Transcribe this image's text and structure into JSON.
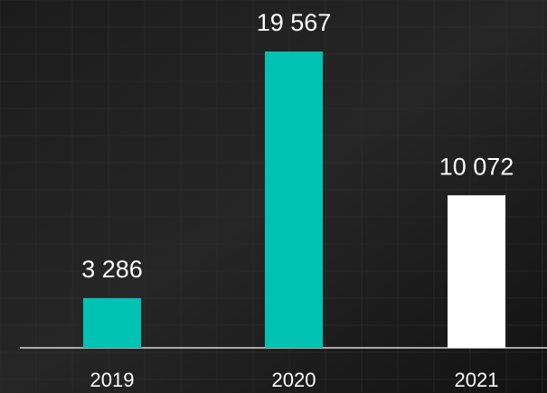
{
  "chart_data": {
    "type": "bar",
    "categories": [
      "2019",
      "2020",
      "2021"
    ],
    "values": [
      3286,
      19567,
      10072
    ],
    "value_labels": [
      "3 286",
      "19 567",
      "10 072"
    ],
    "colors": [
      "#00c2b2",
      "#00c2b2",
      "#ffffff"
    ]
  }
}
